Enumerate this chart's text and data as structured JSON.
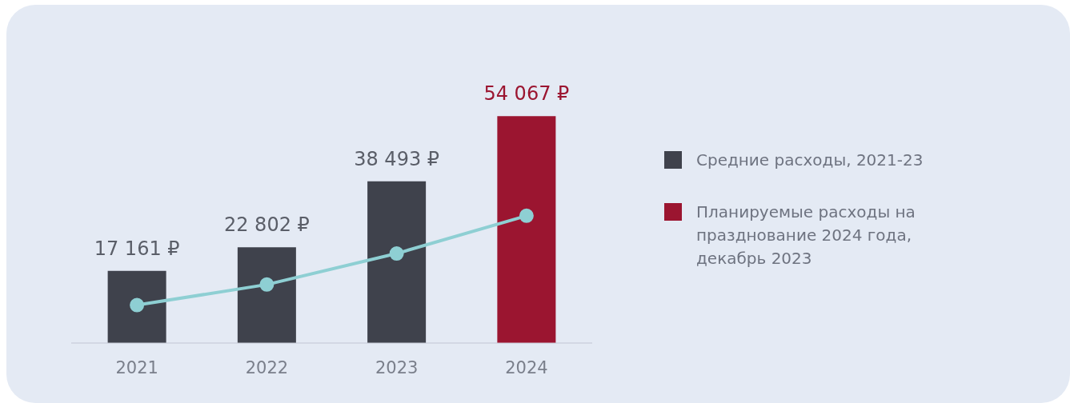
{
  "chart_data": {
    "type": "bar",
    "stacked": true,
    "categories": [
      "2021",
      "2022",
      "2023",
      "2024"
    ],
    "tick_labels": "x",
    "grid": false,
    "legend": "right",
    "series": [
      {
        "name": "Средние расходы, 2021-23",
        "color": "#3f424c",
        "values": [
          17161,
          22802,
          38493,
          null
        ],
        "value_labels": [
          "17 161 ₽",
          "22 802 ₽",
          "38 493 ₽",
          null
        ]
      },
      {
        "name": "Планируемые расходы на празднование 2024 года, декабрь 2023",
        "color": "#9b1530",
        "values": [
          null,
          null,
          null,
          54067
        ],
        "value_labels": [
          null,
          null,
          null,
          "54 067 ₽"
        ]
      },
      {
        "type": "line",
        "color": "#8ecfd3",
        "marker": "circle",
        "line_style": "solid",
        "values": [
          9000,
          13900,
          21300,
          30300
        ]
      }
    ]
  }
}
